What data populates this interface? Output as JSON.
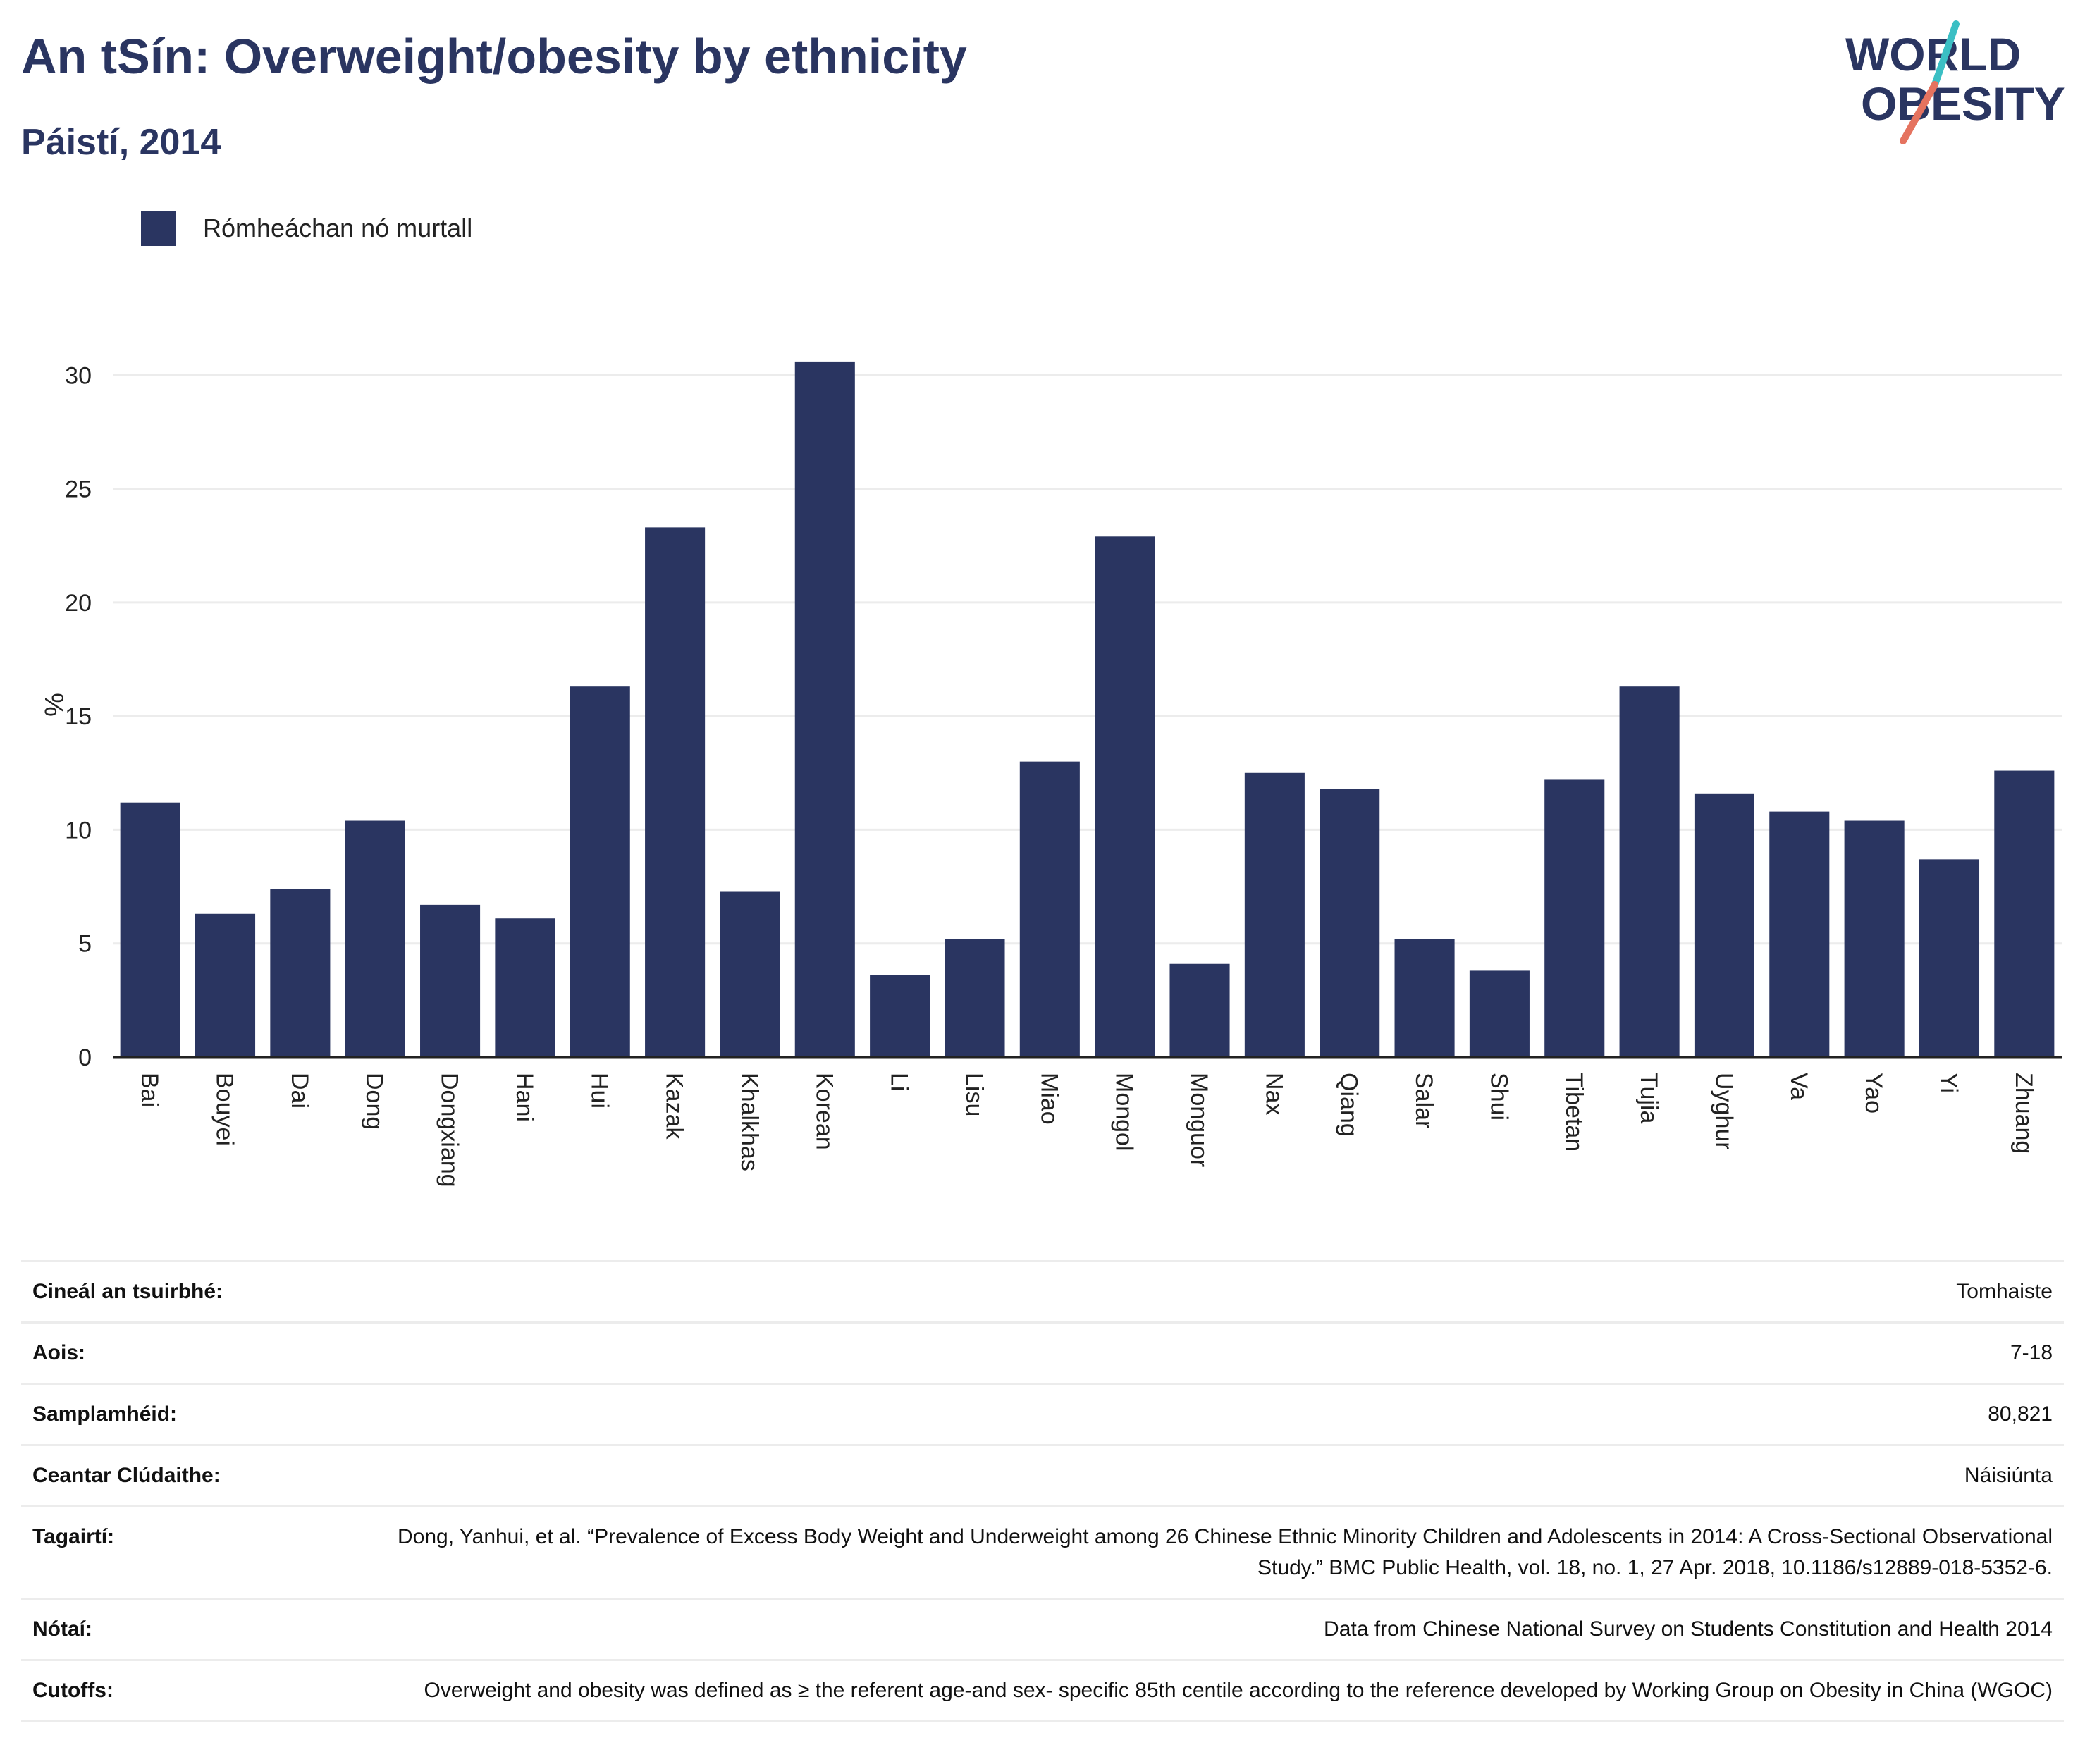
{
  "header": {
    "title": "An tSín: Overweight/obesity by ethnicity",
    "subtitle": "Páistí, 2014",
    "logo_line1": "WORLD",
    "logo_line2": "OBESITY"
  },
  "legend": {
    "label": "Rómheáchan nó murtall"
  },
  "colors": {
    "bar": "#2a3561",
    "grid": "#ececec",
    "logo_teal": "#3bbfc4",
    "logo_coral": "#e5735f"
  },
  "chart_data": {
    "type": "bar",
    "categories": [
      "Bai",
      "Bouyei",
      "Dai",
      "Dong",
      "Dongxiang",
      "Hani",
      "Hui",
      "Kazak",
      "Khalkhas",
      "Korean",
      "Li",
      "Lisu",
      "Miao",
      "Mongol",
      "Monguor",
      "Nax",
      "Qiang",
      "Salar",
      "Shui",
      "Tibetan",
      "Tujia",
      "Uyghur",
      "Va",
      "Yao",
      "Yi",
      "Zhuang"
    ],
    "series": [
      {
        "name": "Rómheáchan nó murtall",
        "values": [
          11.2,
          6.3,
          7.4,
          10.4,
          6.7,
          6.1,
          16.3,
          23.3,
          7.3,
          30.6,
          3.6,
          5.2,
          13.0,
          22.9,
          4.1,
          12.5,
          11.8,
          5.2,
          3.8,
          12.2,
          16.3,
          11.6,
          10.8,
          10.4,
          8.7,
          12.6
        ]
      }
    ],
    "ylabel": "%",
    "ylim": [
      0,
      31
    ],
    "yticks": [
      0,
      5,
      10,
      15,
      20,
      25,
      30
    ],
    "grid": true,
    "legend_position": "top-left"
  },
  "info": [
    {
      "label": "Cineál an tsuirbhé:",
      "value": "Tomhaiste"
    },
    {
      "label": "Aois:",
      "value": "7-18"
    },
    {
      "label": "Samplamhéid:",
      "value": "80,821"
    },
    {
      "label": "Ceantar Clúdaithe:",
      "value": "Náisiúnta"
    },
    {
      "label": "Tagairtí:",
      "value": "Dong, Yanhui, et al. “Prevalence of Excess Body Weight and Underweight among 26 Chinese Ethnic Minority Children and Adolescents in 2014: A Cross-Sectional Observational Study.” BMC Public Health, vol. 18, no. 1, 27 Apr. 2018, 10.1186/s12889-018-5352-6."
    },
    {
      "label": "Nótaí:",
      "value": "Data from Chinese National Survey on Students Constitution and Health 2014"
    },
    {
      "label": "Cutoffs:",
      "value": "Overweight and obesity was defined as ≥ the referent age-and sex- specific 85th centile according to the reference developed by Working Group on Obesity in China (WGOC)"
    }
  ]
}
